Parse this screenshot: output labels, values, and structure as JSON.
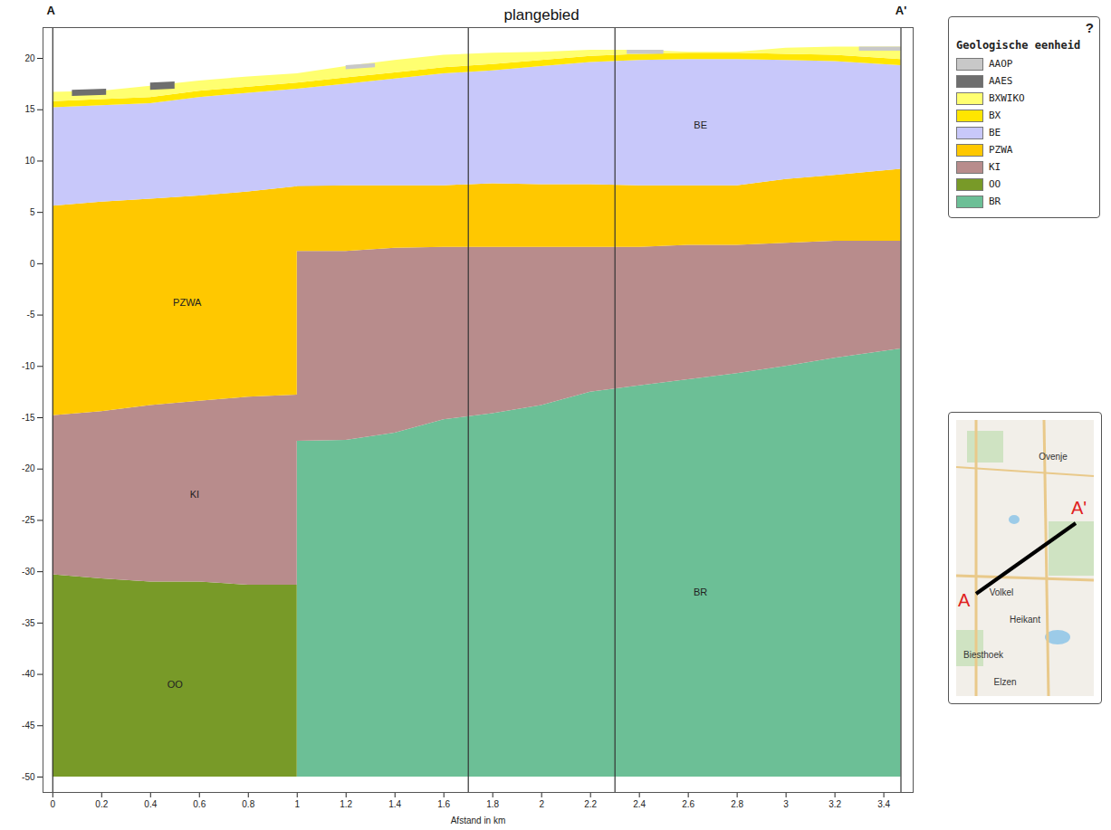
{
  "chart_data": {
    "type": "area",
    "title": "plangebied",
    "section_start": "A",
    "section_end": "A'",
    "x_label": "Afstand in km",
    "xlim": [
      -0.04,
      3.52
    ],
    "xticks": [
      0,
      0.2,
      0.4,
      0.6,
      0.8,
      1,
      1.2,
      1.4,
      1.6,
      1.8,
      2,
      2.2,
      2.4,
      2.6,
      2.8,
      3,
      3.2,
      3.4
    ],
    "ylim": [
      -51.5,
      23
    ],
    "yticks": [
      -50,
      -45,
      -40,
      -35,
      -30,
      -25,
      -20,
      -15,
      -10,
      -5,
      0,
      5,
      10,
      15,
      20
    ],
    "grid": false,
    "legend": "right",
    "legend_title": "Geologische eenheid",
    "legend_help": "?",
    "vertical_lines": [
      0,
      1.7,
      2.3,
      3.47
    ],
    "series": [
      {
        "name": "AAOP",
        "color": "#c8c8c8",
        "x": [
          1.2,
          1.32,
          1.4,
          2.35,
          2.5,
          2.6,
          3.3,
          3.47
        ],
        "lower": [
          18.9,
          19.1,
          null,
          20.4,
          20.4,
          null,
          20.7,
          20.7
        ],
        "upper": [
          19.3,
          19.5,
          null,
          20.8,
          20.8,
          null,
          21.1,
          21.1
        ]
      },
      {
        "name": "AAES",
        "color": "#6e6e6e",
        "x": [
          0.08,
          0.22,
          0.3,
          0.4,
          0.5
        ],
        "lower": [
          16.3,
          16.4,
          null,
          16.9,
          17.0
        ],
        "upper": [
          16.9,
          17.0,
          null,
          17.6,
          17.7
        ]
      },
      {
        "name": "BXWIKO",
        "color": "#ffff70",
        "x": [
          0,
          0.2,
          0.4,
          0.6,
          0.8,
          1,
          1.2,
          1.4,
          1.6,
          1.8,
          2,
          2.2,
          2.4,
          2.6,
          2.8,
          3,
          3.2,
          3.47
        ],
        "lower": [
          15.8,
          16.0,
          16.2,
          16.8,
          17.2,
          17.6,
          18.1,
          18.6,
          19.1,
          19.4,
          19.8,
          20.2,
          20.4,
          20.5,
          20.5,
          20.4,
          20.3,
          19.9
        ],
        "upper": [
          16.7,
          16.8,
          17.3,
          17.8,
          18.2,
          18.5,
          19.2,
          19.8,
          20.3,
          20.5,
          20.6,
          20.8,
          20.8,
          20.6,
          20.6,
          21.0,
          21.1,
          21.1
        ]
      },
      {
        "name": "BX",
        "color": "#ffe600",
        "x": [
          0,
          0.2,
          0.4,
          0.6,
          0.8,
          1,
          1.2,
          1.4,
          1.6,
          1.8,
          2,
          2.2,
          2.4,
          2.6,
          2.8,
          3,
          3.2,
          3.47
        ],
        "lower": [
          15.2,
          15.4,
          15.6,
          16.2,
          16.6,
          17.0,
          17.5,
          18.0,
          18.5,
          18.8,
          19.2,
          19.6,
          19.8,
          19.9,
          19.9,
          19.8,
          19.7,
          19.3
        ],
        "upper": [
          15.8,
          16.0,
          16.2,
          16.8,
          17.2,
          17.6,
          18.1,
          18.6,
          19.1,
          19.4,
          19.8,
          20.2,
          20.4,
          20.5,
          20.5,
          20.4,
          20.3,
          19.9
        ]
      },
      {
        "name": "BE",
        "color": "#c8c8fa",
        "x": [
          0,
          0.2,
          0.4,
          0.6,
          0.8,
          1,
          1.2,
          1.4,
          1.6,
          1.8,
          2,
          2.2,
          2.4,
          2.6,
          2.8,
          3,
          3.2,
          3.47
        ],
        "lower": [
          5.6,
          6.0,
          6.3,
          6.6,
          7.0,
          7.5,
          7.6,
          7.6,
          7.6,
          7.8,
          7.7,
          7.7,
          7.6,
          7.6,
          7.6,
          8.2,
          8.6,
          9.2
        ],
        "upper": [
          15.2,
          15.4,
          15.6,
          16.2,
          16.6,
          17.0,
          17.5,
          18.0,
          18.5,
          18.8,
          19.2,
          19.6,
          19.8,
          19.9,
          19.9,
          19.8,
          19.7,
          19.3
        ]
      },
      {
        "name": "PZWA",
        "color": "#ffc800",
        "x": [
          0,
          0.2,
          0.4,
          0.6,
          0.8,
          1,
          1,
          1.2,
          1.4,
          1.6,
          1.8,
          2,
          2.2,
          2.4,
          2.6,
          2.8,
          3,
          3.2,
          3.47
        ],
        "lower": [
          -14.8,
          -14.4,
          -13.8,
          -13.4,
          -13.0,
          -12.8,
          1.2,
          1.2,
          1.5,
          1.6,
          1.6,
          1.6,
          1.6,
          1.6,
          1.8,
          1.8,
          2.0,
          2.2,
          2.2
        ],
        "upper": [
          5.6,
          6.0,
          6.3,
          6.6,
          7.0,
          7.5,
          7.6,
          7.6,
          7.6,
          7.6,
          7.8,
          7.7,
          7.7,
          7.6,
          7.6,
          7.6,
          8.2,
          8.6,
          9.2
        ]
      },
      {
        "name": "KI",
        "color": "#b88c8c",
        "x": [
          0,
          0.2,
          0.4,
          0.6,
          0.8,
          1,
          1,
          1.2,
          1.4,
          1.6,
          1.8,
          2,
          2.2,
          2.4,
          2.6,
          2.8,
          3,
          3.2,
          3.47
        ],
        "lower": [
          -30.3,
          -30.7,
          -31.0,
          -31.0,
          -31.3,
          -31.3,
          -17.3,
          -17.2,
          -16.5,
          -15.2,
          -14.6,
          -13.8,
          -12.5,
          -11.9,
          -11.3,
          -10.7,
          -10.0,
          -9.2,
          -8.3
        ],
        "upper": [
          -14.8,
          -14.4,
          -13.8,
          -13.4,
          -13.0,
          -12.8,
          1.2,
          1.2,
          1.5,
          1.6,
          1.6,
          1.6,
          1.6,
          1.6,
          1.8,
          1.8,
          2.0,
          2.2,
          2.2
        ]
      },
      {
        "name": "OO",
        "color": "#789a28",
        "x": [
          0,
          0.2,
          0.4,
          0.6,
          0.8,
          1
        ],
        "lower": [
          -50,
          -50,
          -50,
          -50,
          -50,
          -50
        ],
        "upper": [
          -30.3,
          -30.7,
          -31.0,
          -31.0,
          -31.3,
          -31.3
        ]
      },
      {
        "name": "BR",
        "color": "#6cbf96",
        "x": [
          1,
          1.2,
          1.4,
          1.6,
          1.8,
          2,
          2.2,
          2.4,
          2.6,
          2.8,
          3,
          3.2,
          3.47
        ],
        "lower": [
          -50,
          -50,
          -50,
          -50,
          -50,
          -50,
          -50,
          -50,
          -50,
          -50,
          -50,
          -50,
          -50
        ],
        "upper": [
          -17.3,
          -17.2,
          -16.5,
          -15.2,
          -14.6,
          -13.8,
          -12.5,
          -11.9,
          -11.3,
          -10.7,
          -10.0,
          -9.2,
          -8.3
        ]
      }
    ],
    "labels": [
      {
        "text": "BE",
        "x": 2.65,
        "y": 13.5
      },
      {
        "text": "PZWA",
        "x": 0.55,
        "y": -3.8
      },
      {
        "text": "KI",
        "x": 0.58,
        "y": -22.5
      },
      {
        "text": "OO",
        "x": 0.5,
        "y": -41
      },
      {
        "text": "BR",
        "x": 2.65,
        "y": -32
      }
    ]
  },
  "inset_map": {
    "start": "A",
    "end": "A'",
    "places": [
      "Ovenje",
      "Volkel",
      "Heikant",
      "Biesthoek",
      "Elzen"
    ]
  }
}
